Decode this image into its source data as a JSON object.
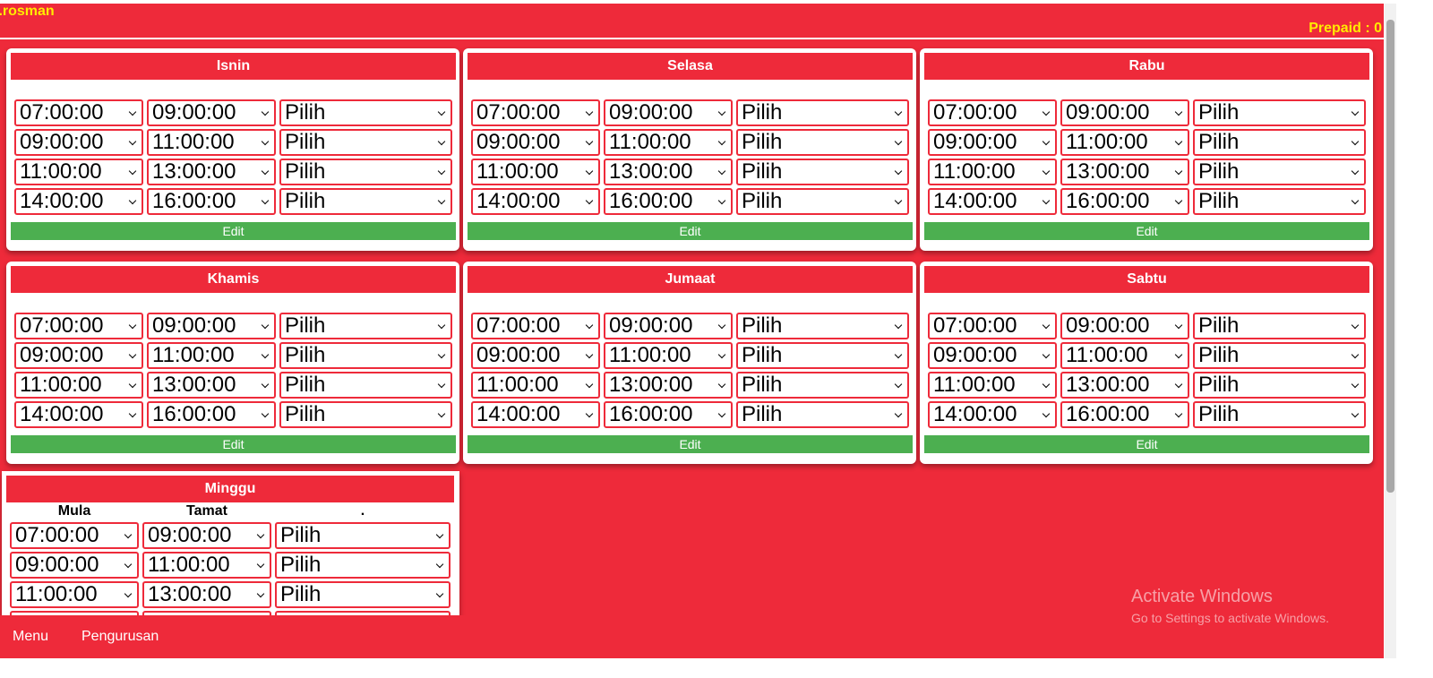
{
  "header": {
    "user": "i.rosman",
    "prepaid": "Prepaid : 0"
  },
  "days": [
    {
      "name": "Isnin",
      "slots": [
        [
          "07:00:00",
          "09:00:00",
          "Pilih"
        ],
        [
          "09:00:00",
          "11:00:00",
          "Pilih"
        ],
        [
          "11:00:00",
          "13:00:00",
          "Pilih"
        ],
        [
          "14:00:00",
          "16:00:00",
          "Pilih"
        ]
      ],
      "button": "Edit"
    },
    {
      "name": "Selasa",
      "slots": [
        [
          "07:00:00",
          "09:00:00",
          "Pilih"
        ],
        [
          "09:00:00",
          "11:00:00",
          "Pilih"
        ],
        [
          "11:00:00",
          "13:00:00",
          "Pilih"
        ],
        [
          "14:00:00",
          "16:00:00",
          "Pilih"
        ]
      ],
      "button": "Edit"
    },
    {
      "name": "Rabu",
      "slots": [
        [
          "07:00:00",
          "09:00:00",
          "Pilih"
        ],
        [
          "09:00:00",
          "11:00:00",
          "Pilih"
        ],
        [
          "11:00:00",
          "13:00:00",
          "Pilih"
        ],
        [
          "14:00:00",
          "16:00:00",
          "Pilih"
        ]
      ],
      "button": "Edit"
    },
    {
      "name": "Khamis",
      "slots": [
        [
          "07:00:00",
          "09:00:00",
          "Pilih"
        ],
        [
          "09:00:00",
          "11:00:00",
          "Pilih"
        ],
        [
          "11:00:00",
          "13:00:00",
          "Pilih"
        ],
        [
          "14:00:00",
          "16:00:00",
          "Pilih"
        ]
      ],
      "button": "Edit"
    },
    {
      "name": "Jumaat",
      "slots": [
        [
          "07:00:00",
          "09:00:00",
          "Pilih"
        ],
        [
          "09:00:00",
          "11:00:00",
          "Pilih"
        ],
        [
          "11:00:00",
          "13:00:00",
          "Pilih"
        ],
        [
          "14:00:00",
          "16:00:00",
          "Pilih"
        ]
      ],
      "button": "Edit"
    },
    {
      "name": "Sabtu",
      "slots": [
        [
          "07:00:00",
          "09:00:00",
          "Pilih"
        ],
        [
          "09:00:00",
          "11:00:00",
          "Pilih"
        ],
        [
          "11:00:00",
          "13:00:00",
          "Pilih"
        ],
        [
          "14:00:00",
          "16:00:00",
          "Pilih"
        ]
      ],
      "button": "Edit"
    },
    {
      "name": "Minggu",
      "columns": [
        "Mula",
        "Tamat",
        "."
      ],
      "slots": [
        [
          "07:00:00",
          "09:00:00",
          "Pilih"
        ],
        [
          "09:00:00",
          "11:00:00",
          "Pilih"
        ],
        [
          "11:00:00",
          "13:00:00",
          "Pilih"
        ]
      ]
    }
  ],
  "menu": [
    "Menu",
    "Pengurusan"
  ],
  "watermark": {
    "title": "Activate Windows",
    "subtitle": "Go to Settings to activate Windows."
  }
}
